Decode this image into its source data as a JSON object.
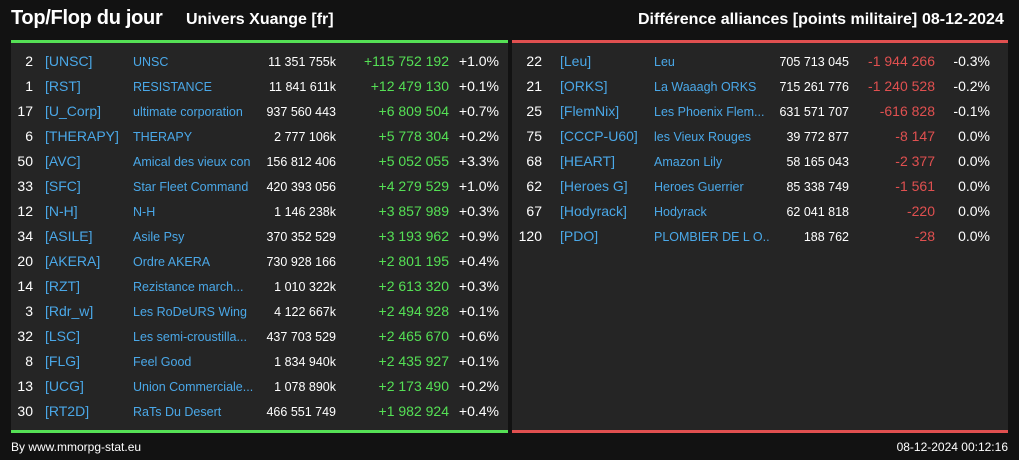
{
  "header": {
    "title": "Top/Flop du jour",
    "universe": "Univers Xuange [fr]",
    "subtitle": "Différence alliances [points militaire]",
    "date": "08-12-2024"
  },
  "colors": {
    "gain": "#55e055",
    "loss": "#e05050",
    "link": "#4aa8e8",
    "panel": "#252525",
    "background": "#121212"
  },
  "top": [
    {
      "rank": "2",
      "tag": "[UNSC]",
      "name": "UNSC",
      "points": "11 351 755k",
      "diff": "+115 752 192",
      "pct": "+1.0%"
    },
    {
      "rank": "1",
      "tag": "[RST]",
      "name": "RESISTANCE",
      "points": "11 841 611k",
      "diff": "+12 479 130",
      "pct": "+0.1%"
    },
    {
      "rank": "17",
      "tag": "[U_Corp]",
      "name": "ultimate corporation",
      "points": "937 560 443",
      "diff": "+6 809 504",
      "pct": "+0.7%"
    },
    {
      "rank": "6",
      "tag": "[THERAPY]",
      "name": "THERAPY",
      "points": "2 777 106k",
      "diff": "+5 778 304",
      "pct": "+0.2%"
    },
    {
      "rank": "50",
      "tag": "[AVC]",
      "name": "Amical des vieux con",
      "points": "156 812 406",
      "diff": "+5 052 055",
      "pct": "+3.3%"
    },
    {
      "rank": "33",
      "tag": "[SFC]",
      "name": "Star Fleet Command",
      "points": "420 393 056",
      "diff": "+4 279 529",
      "pct": "+1.0%"
    },
    {
      "rank": "12",
      "tag": "[N-H]",
      "name": "N-H",
      "points": "1 146 238k",
      "diff": "+3 857 989",
      "pct": "+0.3%"
    },
    {
      "rank": "34",
      "tag": "[ASILE]",
      "name": "Asile Psy",
      "points": "370 352 529",
      "diff": "+3 193 962",
      "pct": "+0.9%"
    },
    {
      "rank": "20",
      "tag": "[AKERA]",
      "name": "Ordre AKERA",
      "points": "730 928 166",
      "diff": "+2 801 195",
      "pct": "+0.4%"
    },
    {
      "rank": "14",
      "tag": "[RZT]",
      "name": "Rezistance march...",
      "points": "1 010 322k",
      "diff": "+2 613 320",
      "pct": "+0.3%"
    },
    {
      "rank": "3",
      "tag": "[Rdr_w]",
      "name": "Les RoDeURS Wing",
      "points": "4 122 667k",
      "diff": "+2 494 928",
      "pct": "+0.1%"
    },
    {
      "rank": "32",
      "tag": "[LSC]",
      "name": "Les semi-croustilla...",
      "points": "437 703 529",
      "diff": "+2 465 670",
      "pct": "+0.6%"
    },
    {
      "rank": "8",
      "tag": "[FLG]",
      "name": "Feel Good",
      "points": "1 834 940k",
      "diff": "+2 435 927",
      "pct": "+0.1%"
    },
    {
      "rank": "13",
      "tag": "[UCG]",
      "name": "Union Commerciale...",
      "points": "1 078 890k",
      "diff": "+2 173 490",
      "pct": "+0.2%"
    },
    {
      "rank": "30",
      "tag": "[RT2D]",
      "name": "RaTs Du Desert",
      "points": "466 551 749",
      "diff": "+1 982 924",
      "pct": "+0.4%"
    }
  ],
  "flop": [
    {
      "rank": "22",
      "tag": "[Leu]",
      "name": "Leu",
      "points": "705 713 045",
      "diff": "-1 944 266",
      "pct": "-0.3%"
    },
    {
      "rank": "21",
      "tag": "[ORKS]",
      "name": "La Waaagh ORKS",
      "points": "715 261 776",
      "diff": "-1 240 528",
      "pct": "-0.2%"
    },
    {
      "rank": "25",
      "tag": "[FlemNix]",
      "name": "Les Phoenix Flem...",
      "points": "631 571 707",
      "diff": "-616 828",
      "pct": "-0.1%"
    },
    {
      "rank": "75",
      "tag": "[CCCP-U60]",
      "name": "les Vieux Rouges",
      "points": "39 772 877",
      "diff": "-8 147",
      "pct": "0.0%"
    },
    {
      "rank": "68",
      "tag": "[HEART]",
      "name": "Amazon Lily",
      "points": "58 165 043",
      "diff": "-2 377",
      "pct": "0.0%"
    },
    {
      "rank": "62",
      "tag": "[Heroes G]",
      "name": "Heroes Guerrier",
      "points": "85 338 749",
      "diff": "-1 561",
      "pct": "0.0%"
    },
    {
      "rank": "67",
      "tag": "[Hodyrack]",
      "name": "Hodyrack",
      "points": "62 041 818",
      "diff": "-220",
      "pct": "0.0%"
    },
    {
      "rank": "120",
      "tag": "[PDO]",
      "name": "PLOMBIER DE L O...",
      "points": "188 762",
      "diff": "-28",
      "pct": "0.0%"
    }
  ],
  "footer": {
    "credit": "By www.mmorpg-stat.eu",
    "timestamp": "08-12-2024 00:12:16"
  }
}
